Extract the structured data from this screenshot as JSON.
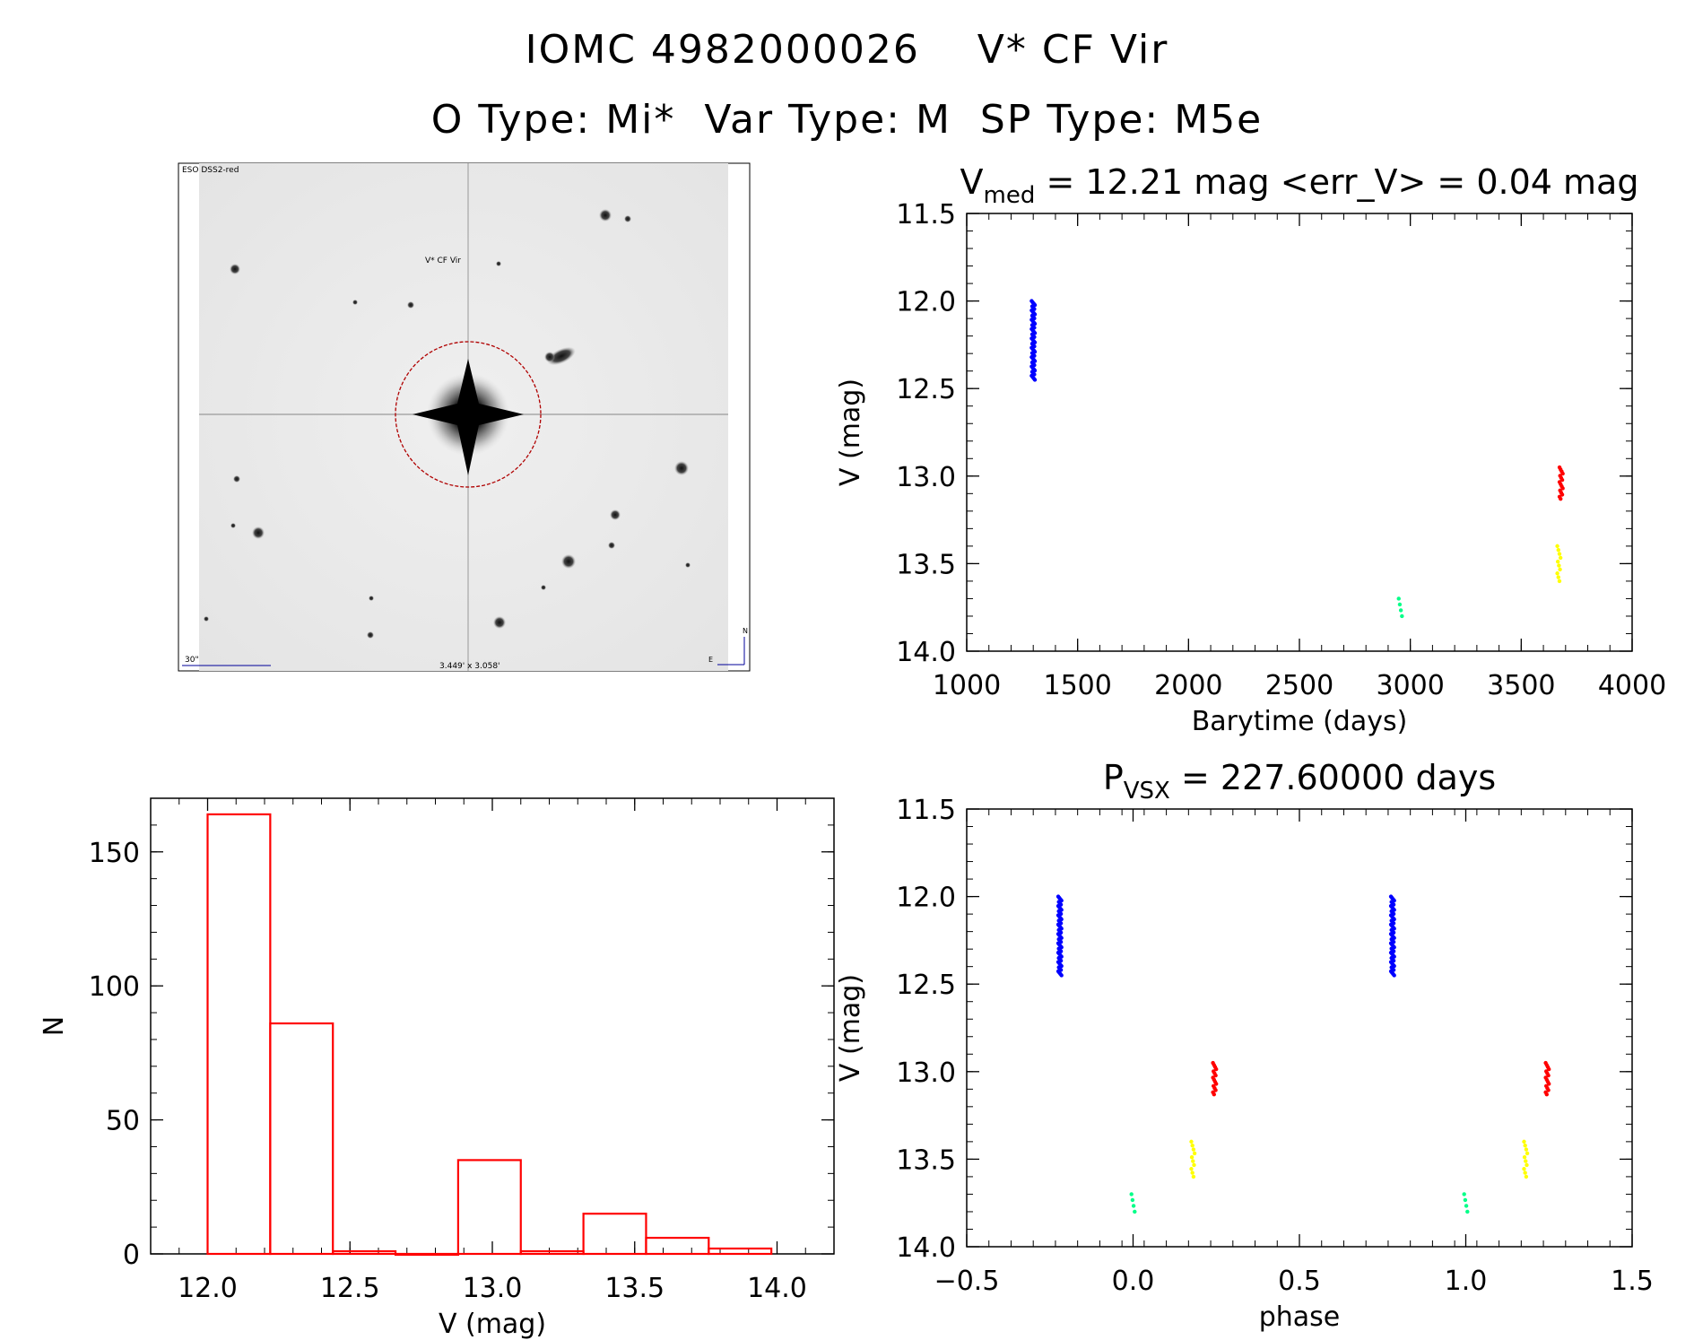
{
  "header": {
    "line1": "IOMC 4982000026    V* CF Vir",
    "line2": "O Type: Mi*  Var Type: M  SP Type: M5e"
  },
  "image_panel": {
    "survey_label": "ESO DSS2-red",
    "target_label": "V* CF Vir",
    "scale_label": "30\"",
    "fov_label": "3.449' x 3.058'",
    "compass_n": "N",
    "compass_e": "E"
  },
  "chart_data": [
    {
      "id": "lightcurve",
      "type": "scatter",
      "title": {
        "prefix": "V",
        "sub": "med",
        "suffix": " = 12.21 mag <err_V> = 0.04 mag"
      },
      "xlabel": "Barytime (days)",
      "ylabel": "V (mag)",
      "xlim": [
        1000,
        4000
      ],
      "ylim": [
        14.0,
        11.5
      ],
      "x_ticks": [
        "1000",
        "1500",
        "2000",
        "2500",
        "3000",
        "3500",
        "4000"
      ],
      "y_ticks": [
        "11.5",
        "12.0",
        "12.5",
        "13.0",
        "13.5",
        "14.0"
      ],
      "series": [
        {
          "color": "#0000ff",
          "x": 1300,
          "ymin": 12.0,
          "ymax": 12.45,
          "n": 60
        },
        {
          "color": "#00ff88",
          "x": 2955,
          "ymin": 13.7,
          "ymax": 13.8,
          "n": 4
        },
        {
          "color": "#ff0000",
          "x": 3680,
          "ymin": 12.95,
          "ymax": 13.13,
          "n": 16
        },
        {
          "color": "#ffff00",
          "x": 3670,
          "ymin": 13.4,
          "ymax": 13.6,
          "n": 10
        }
      ]
    },
    {
      "id": "histogram",
      "type": "bar",
      "xlabel": "V (mag)",
      "ylabel": "N",
      "xlim": [
        11.8,
        14.2
      ],
      "ylim": [
        0,
        170
      ],
      "x_ticks": [
        "12.0",
        "12.5",
        "13.0",
        "13.5",
        "14.0"
      ],
      "y_ticks": [
        "0",
        "50",
        "100",
        "150"
      ],
      "bin_edges": [
        12.0,
        12.22,
        12.44,
        12.66,
        12.88,
        13.1,
        13.32,
        13.54,
        13.76,
        13.98
      ],
      "values": [
        164,
        86,
        1,
        0,
        35,
        1,
        15,
        6,
        2
      ],
      "color": "#ff0000"
    },
    {
      "id": "phased",
      "type": "scatter",
      "title": {
        "prefix": "P",
        "sub": "VSX",
        "suffix": " = 227.60000 days"
      },
      "xlabel": "phase",
      "ylabel": "V (mag)",
      "xlim": [
        -0.5,
        1.5
      ],
      "ylim": [
        14.0,
        11.5
      ],
      "x_ticks": [
        "−0.5",
        "0.0",
        "0.5",
        "1.0",
        "1.5"
      ],
      "y_ticks": [
        "11.5",
        "12.0",
        "12.5",
        "13.0",
        "13.5",
        "14.0"
      ],
      "series": [
        {
          "color": "#0000ff",
          "x": -0.22,
          "ymin": 12.0,
          "ymax": 12.45,
          "n": 60
        },
        {
          "color": "#0000ff",
          "x": 0.78,
          "ymin": 12.0,
          "ymax": 12.45,
          "n": 60
        },
        {
          "color": "#00ff88",
          "x": 0.0,
          "ymin": 13.7,
          "ymax": 13.8,
          "n": 4
        },
        {
          "color": "#00ff88",
          "x": 1.0,
          "ymin": 13.7,
          "ymax": 13.8,
          "n": 4
        },
        {
          "color": "#ff0000",
          "x": 0.245,
          "ymin": 12.95,
          "ymax": 13.13,
          "n": 16
        },
        {
          "color": "#ff0000",
          "x": 1.245,
          "ymin": 12.95,
          "ymax": 13.13,
          "n": 16
        },
        {
          "color": "#ffff00",
          "x": 0.18,
          "ymin": 13.4,
          "ymax": 13.6,
          "n": 10
        },
        {
          "color": "#ffff00",
          "x": 1.18,
          "ymin": 13.4,
          "ymax": 13.6,
          "n": 10
        }
      ]
    }
  ]
}
